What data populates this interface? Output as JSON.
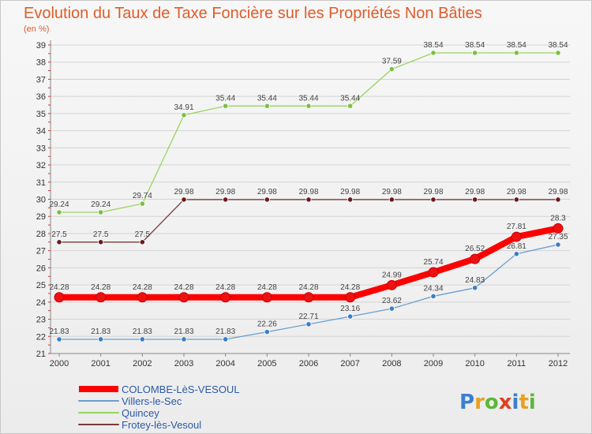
{
  "chart_data": {
    "type": "line",
    "title": "Evolution du Taux de Taxe Foncière sur les Propriétés Non Bâties",
    "subtitle": "(en %)",
    "x": [
      "2000",
      "2001",
      "2002",
      "2003",
      "2004",
      "2005",
      "2006",
      "2007",
      "2008",
      "2009",
      "2010",
      "2011",
      "2012"
    ],
    "ylim": [
      21,
      39
    ],
    "yticks": [
      21,
      22,
      23,
      24,
      25,
      26,
      27,
      28,
      29,
      30,
      31,
      32,
      33,
      34,
      35,
      36,
      37,
      38,
      39
    ],
    "grid": "horizontal",
    "legend_position": "bottom-left",
    "series": [
      {
        "name": "COLOMBE-LèS-VESOUL",
        "color": "#ff0000",
        "marker": "#ee1111",
        "bold": true,
        "values": [
          24.28,
          24.28,
          24.28,
          24.28,
          24.28,
          24.28,
          24.28,
          24.28,
          24.99,
          25.74,
          26.52,
          27.81,
          28.3
        ],
        "labels": [
          "24.28",
          "24.28",
          "24.28",
          "24.28",
          "24.28",
          "24.28",
          "24.28",
          "24.28",
          "24.99",
          "25.74",
          "26.52",
          "27.81",
          "28.3"
        ]
      },
      {
        "name": "Villers-le-Sec",
        "color": "#6a9fd0",
        "marker": "#3b7fc4",
        "bold": false,
        "values": [
          21.83,
          21.83,
          21.83,
          21.83,
          21.83,
          22.26,
          22.71,
          23.16,
          23.62,
          24.34,
          24.83,
          26.81,
          27.35
        ],
        "labels": [
          "21.83",
          "21.83",
          "21.83",
          "21.83",
          "21.83",
          "22.26",
          "22.71",
          "23.16",
          "23.62",
          "24.34",
          "24.83",
          "26.81",
          "27.35"
        ]
      },
      {
        "name": "Quincey",
        "color": "#9ad45e",
        "marker": "#7ac142",
        "bold": false,
        "values": [
          29.24,
          29.24,
          29.74,
          34.91,
          35.44,
          35.44,
          35.44,
          35.44,
          37.59,
          38.54,
          38.54,
          38.54,
          38.54
        ],
        "labels": [
          "29.24",
          "29.24",
          "29.74",
          "34.91",
          "35.44",
          "35.44",
          "35.44",
          "35.44",
          "37.59",
          "38.54",
          "38.54",
          "38.54",
          "38.54"
        ]
      },
      {
        "name": "Frotey-lès-Vesoul",
        "color": "#7a3a3a",
        "marker": "#6b1a1a",
        "bold": false,
        "values": [
          27.5,
          27.5,
          27.5,
          29.98,
          29.98,
          29.98,
          29.98,
          29.98,
          29.98,
          29.98,
          29.98,
          29.98,
          29.98
        ],
        "labels": [
          "27.5",
          "27.5",
          "27.5",
          "29.98",
          "29.98",
          "29.98",
          "29.98",
          "29.98",
          "29.98",
          "29.98",
          "29.98",
          "29.98",
          "29.98"
        ]
      }
    ]
  },
  "logo": {
    "text": "Proxiti"
  }
}
